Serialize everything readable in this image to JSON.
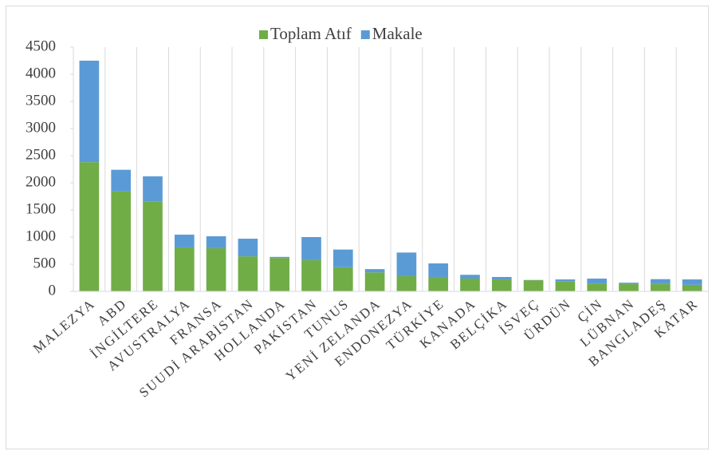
{
  "chart_data": {
    "type": "stacked_bar",
    "categories": [
      "MALEZYA",
      "ABD",
      "İNGİLTERE",
      "AVUSTRALYA",
      "FRANSA",
      "SUUDİ ARABİSTAN",
      "HOLLANDA",
      "PAKİSTAN",
      "TUNUS",
      "YENİ ZELANDA",
      "ENDONEZYA",
      "TÜRKİYE",
      "KANADA",
      "BELÇİKA",
      "İSVEÇ",
      "ÜRDÜN",
      "ÇİN",
      "LÜBNAN",
      "BANGLADEŞ",
      "KATAR"
    ],
    "series": [
      {
        "name": "Toplam Atıf",
        "color": "#70ad47",
        "values": [
          2380,
          1840,
          1650,
          810,
          795,
          645,
          615,
          575,
          445,
          350,
          280,
          265,
          235,
          220,
          205,
          180,
          145,
          135,
          135,
          120
        ]
      },
      {
        "name": "Makale",
        "color": "#5b9bd5",
        "values": [
          1870,
          400,
          470,
          235,
          220,
          325,
          20,
          425,
          325,
          60,
          435,
          250,
          70,
          45,
          5,
          40,
          90,
          25,
          90,
          100
        ]
      }
    ],
    "ylim": [
      0,
      4500
    ],
    "yticks": [
      0,
      500,
      1000,
      1500,
      2000,
      2500,
      3000,
      3500,
      4000,
      4500
    ],
    "legend": "top"
  }
}
